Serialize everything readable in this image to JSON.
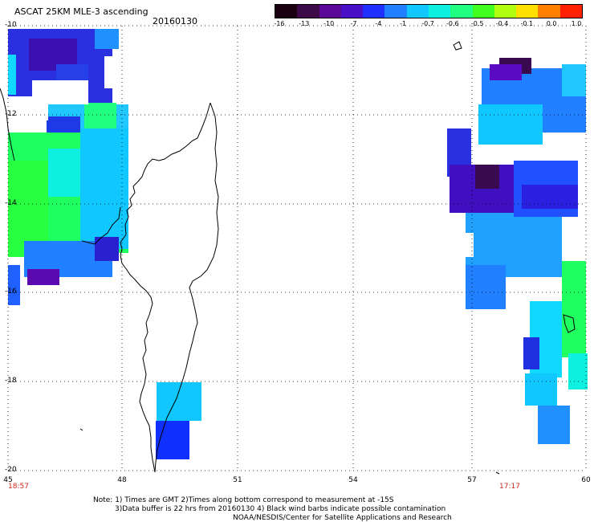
{
  "header": {
    "title": "ASCAT 25KM MLE-3 ascending",
    "date": "20160130"
  },
  "colorbar": {
    "tick_labels": [
      "-16",
      "-13",
      "-10",
      "-7",
      "-4",
      "-1",
      "-0.7",
      "-0.6",
      "-0.5",
      "-0.4",
      "-0.1",
      "0.0",
      "1.0"
    ],
    "colors": [
      "#1a0010",
      "#3c0a46",
      "#5a0a96",
      "#4a10c8",
      "#2030ff",
      "#2080ff",
      "#10c8ff",
      "#10f0e0",
      "#20ff80",
      "#40ff20",
      "#b0ff10",
      "#ffe000",
      "#ff8000",
      "#ff2000"
    ]
  },
  "map": {
    "lat_labels": [
      "-10",
      "-12",
      "-14",
      "-16",
      "-18",
      "-20"
    ],
    "lon_labels": [
      "45",
      "48",
      "51",
      "54",
      "57",
      "60"
    ],
    "time_labels": [
      "18:57",
      "17:17"
    ]
  },
  "notes": {
    "line1": "Note: 1) Times are GMT 2)Times along bottom correspond to measurement at -15S",
    "line2": "3)Data buffer is 22 hrs from 20160130 4) Black wind barbs indicate possible contamination",
    "line3": "NOAA/NESDIS/Center for Satellite Applications and Research"
  }
}
